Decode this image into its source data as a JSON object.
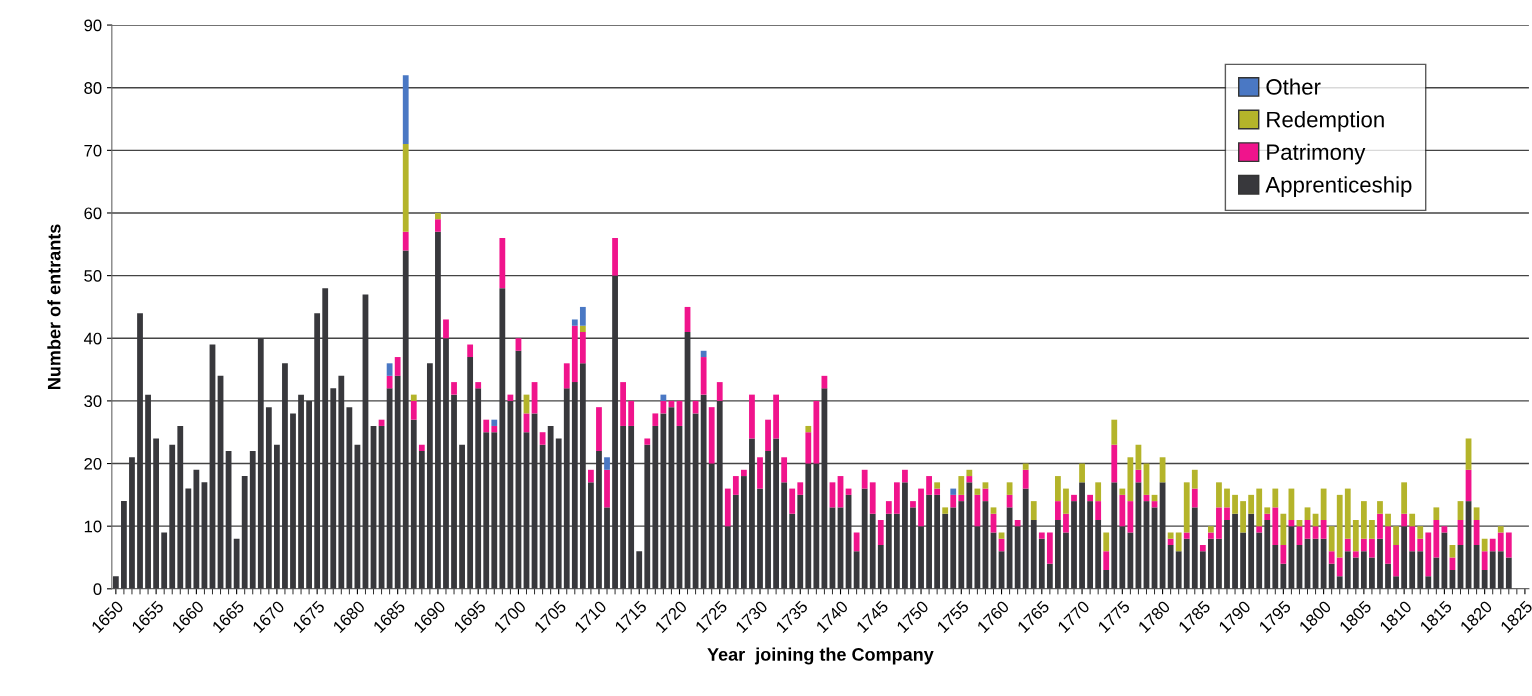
{
  "chart_data": {
    "type": "bar",
    "stacked": true,
    "xlabel": "Year  joining the Company",
    "ylabel": "Number of entrants",
    "categories": [
      "1650",
      null,
      null,
      null,
      null,
      "1655",
      null,
      null,
      null,
      null,
      "1660",
      null,
      null,
      null,
      null,
      "1665",
      null,
      null,
      null,
      null,
      "1670",
      null,
      null,
      null,
      null,
      "1675",
      null,
      null,
      null,
      null,
      "1680",
      null,
      null,
      null,
      null,
      "1685",
      null,
      null,
      null,
      null,
      "1690",
      null,
      null,
      null,
      null,
      "1695",
      null,
      null,
      null,
      null,
      "1700",
      null,
      null,
      null,
      null,
      "1705",
      null,
      null,
      null,
      null,
      "1710",
      null,
      null,
      null,
      null,
      "1715",
      null,
      null,
      null,
      null,
      "1720",
      null,
      null,
      null,
      null,
      "1725",
      null,
      null,
      null,
      null,
      "1730",
      null,
      null,
      null,
      null,
      "1735",
      null,
      null,
      null,
      null,
      "1740",
      null,
      null,
      null,
      null,
      "1745",
      null,
      null,
      null,
      null,
      "1750",
      null,
      null,
      null,
      null,
      "1755",
      null,
      null,
      null,
      null,
      "1760",
      null,
      null,
      null,
      null,
      "1765",
      null,
      null,
      null,
      null,
      "1770",
      null,
      null,
      null,
      null,
      "1775",
      null,
      null,
      null,
      null,
      "1780",
      null,
      null,
      null,
      null,
      "1785",
      null,
      null,
      null,
      null,
      "1790",
      null,
      null,
      null,
      null,
      "1795",
      null,
      null,
      null,
      null,
      "1800",
      null,
      null,
      null,
      null,
      "1805",
      null,
      null,
      null,
      null,
      "1810",
      null,
      null,
      null,
      null,
      "1815",
      null,
      null,
      null,
      null,
      "1820",
      null,
      null,
      null,
      null,
      "1825"
    ],
    "series": [
      {
        "name": "Apprenticeship",
        "color": "#38383c",
        "values": [
          2,
          14,
          21,
          44,
          31,
          24,
          9,
          23,
          26,
          16,
          19,
          17,
          39,
          34,
          22,
          8,
          18,
          22,
          40,
          29,
          23,
          36,
          28,
          31,
          30,
          44,
          48,
          32,
          34,
          29,
          23,
          47,
          26,
          26,
          32,
          34,
          54,
          27,
          22,
          36,
          57,
          40,
          31,
          23,
          37,
          32,
          25,
          25,
          48,
          30,
          38,
          25,
          28,
          23,
          26,
          24,
          32,
          33,
          36,
          17,
          22,
          13,
          50,
          26,
          26,
          6,
          23,
          26,
          28,
          29,
          26,
          41,
          28,
          31,
          20,
          30,
          10,
          15,
          18,
          24,
          16,
          22,
          24,
          17,
          12,
          15,
          20,
          20,
          32,
          13,
          13,
          15,
          6,
          16,
          12,
          7,
          12,
          12,
          17,
          13,
          10,
          15,
          15,
          12,
          13,
          14,
          17,
          10,
          14,
          9,
          6,
          13,
          10,
          16,
          11,
          8,
          4,
          11,
          9,
          14,
          17,
          14,
          11,
          3,
          17,
          10,
          9,
          17,
          14,
          13,
          17,
          7,
          6,
          8,
          13,
          6,
          8,
          8,
          11,
          12,
          9,
          12,
          9,
          11,
          7,
          4,
          10,
          7,
          8,
          8,
          8,
          4,
          2,
          6,
          5,
          6,
          5,
          8,
          4,
          2,
          10,
          6,
          6,
          2,
          5,
          9,
          3,
          7,
          14,
          7,
          3,
          6,
          6,
          5,
          null,
          null
        ]
      },
      {
        "name": "Patrimony",
        "color": "#f0148c",
        "values": [
          0,
          0,
          0,
          0,
          0,
          0,
          0,
          0,
          0,
          0,
          0,
          0,
          0,
          0,
          0,
          0,
          0,
          0,
          0,
          0,
          0,
          0,
          0,
          0,
          0,
          0,
          0,
          0,
          0,
          0,
          0,
          0,
          0,
          1,
          2,
          3,
          3,
          3,
          1,
          0,
          2,
          3,
          2,
          0,
          2,
          1,
          2,
          1,
          8,
          1,
          2,
          3,
          5,
          2,
          0,
          0,
          4,
          9,
          5,
          2,
          7,
          6,
          6,
          7,
          4,
          0,
          1,
          2,
          2,
          1,
          4,
          4,
          2,
          6,
          9,
          3,
          6,
          3,
          1,
          7,
          5,
          5,
          7,
          4,
          4,
          2,
          5,
          10,
          2,
          4,
          5,
          1,
          3,
          3,
          5,
          4,
          2,
          5,
          2,
          1,
          6,
          3,
          1,
          0,
          2,
          1,
          1,
          5,
          2,
          3,
          2,
          2,
          1,
          3,
          0,
          1,
          5,
          3,
          3,
          1,
          0,
          1,
          3,
          3,
          6,
          5,
          5,
          2,
          1,
          1,
          0,
          1,
          0,
          1,
          3,
          1,
          1,
          5,
          2,
          0,
          0,
          0,
          1,
          1,
          6,
          3,
          1,
          3,
          3,
          2,
          3,
          2,
          3,
          2,
          1,
          2,
          3,
          4,
          6,
          5,
          2,
          4,
          2,
          7,
          6,
          1,
          2,
          4,
          5,
          4,
          3,
          2,
          3,
          4,
          null,
          null
        ]
      },
      {
        "name": "Redemption",
        "color": "#b4b42a",
        "values": [
          0,
          0,
          0,
          0,
          0,
          0,
          0,
          0,
          0,
          0,
          0,
          0,
          0,
          0,
          0,
          0,
          0,
          0,
          0,
          0,
          0,
          0,
          0,
          0,
          0,
          0,
          0,
          0,
          0,
          0,
          0,
          0,
          0,
          0,
          0,
          0,
          14,
          1,
          0,
          0,
          1,
          0,
          0,
          0,
          0,
          0,
          0,
          0,
          0,
          0,
          0,
          3,
          0,
          0,
          0,
          0,
          0,
          0,
          1,
          0,
          0,
          0,
          0,
          0,
          0,
          0,
          0,
          0,
          0,
          0,
          0,
          0,
          0,
          0,
          0,
          0,
          0,
          0,
          0,
          0,
          0,
          0,
          0,
          0,
          0,
          0,
          1,
          0,
          0,
          0,
          0,
          0,
          0,
          0,
          0,
          0,
          0,
          0,
          0,
          0,
          0,
          0,
          1,
          1,
          0,
          3,
          1,
          1,
          1,
          1,
          1,
          2,
          0,
          1,
          3,
          0,
          0,
          4,
          4,
          0,
          3,
          0,
          3,
          3,
          4,
          1,
          7,
          4,
          5,
          1,
          4,
          1,
          3,
          8,
          3,
          0,
          1,
          4,
          3,
          3,
          5,
          3,
          6,
          1,
          3,
          5,
          5,
          1,
          2,
          2,
          5,
          4,
          10,
          8,
          5,
          6,
          3,
          2,
          2,
          3,
          5,
          2,
          2,
          0,
          2,
          0,
          2,
          3,
          5,
          2,
          2,
          0,
          1,
          0,
          null,
          null
        ]
      },
      {
        "name": "Other",
        "color": "#4a78c4",
        "values": [
          0,
          0,
          0,
          0,
          0,
          0,
          0,
          0,
          0,
          0,
          0,
          0,
          0,
          0,
          0,
          0,
          0,
          0,
          0,
          0,
          0,
          0,
          0,
          0,
          0,
          0,
          0,
          0,
          0,
          0,
          0,
          0,
          0,
          0,
          2,
          0,
          11,
          0,
          0,
          0,
          0,
          0,
          0,
          0,
          0,
          0,
          0,
          1,
          0,
          0,
          0,
          0,
          0,
          0,
          0,
          0,
          0,
          1,
          3,
          0,
          0,
          2,
          0,
          0,
          0,
          0,
          0,
          0,
          1,
          0,
          0,
          0,
          0,
          1,
          0,
          0,
          0,
          0,
          0,
          0,
          0,
          0,
          0,
          0,
          0,
          0,
          0,
          0,
          0,
          0,
          0,
          0,
          0,
          0,
          0,
          0,
          0,
          0,
          0,
          0,
          0,
          0,
          0,
          0,
          1,
          0,
          0,
          0,
          0,
          0,
          0,
          0,
          0,
          0,
          0,
          0,
          0,
          0,
          0,
          0,
          0,
          0,
          0,
          0,
          0,
          0,
          0,
          0,
          0,
          0,
          0,
          0,
          0,
          0,
          0,
          0,
          0,
          0,
          0,
          0,
          0,
          0,
          0,
          0,
          0,
          0,
          0,
          0,
          0,
          0,
          0,
          0,
          0,
          0,
          0,
          0,
          0,
          0,
          0,
          0,
          0,
          0,
          0,
          0,
          0,
          0,
          0,
          0,
          0,
          0,
          0,
          0,
          0,
          0,
          null,
          null
        ]
      }
    ],
    "ylim": [
      0,
      90
    ],
    "yticks": [
      0,
      10,
      20,
      30,
      40,
      50,
      60,
      70,
      80,
      90
    ],
    "grid": "y",
    "legend": "top right"
  }
}
